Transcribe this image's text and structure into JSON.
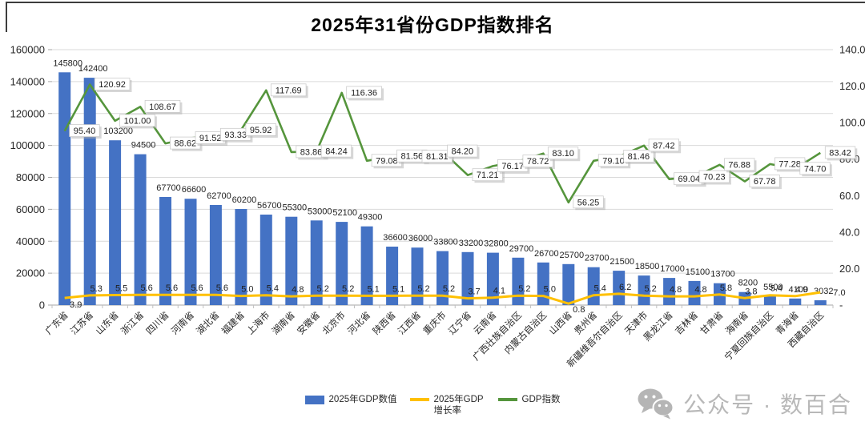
{
  "chart_data": {
    "type": "bar+line combo",
    "title": "2025年31省份GDP指数排名",
    "legend_position": "bottom",
    "grid": true,
    "categories": [
      "广东省",
      "江苏省",
      "山东省",
      "浙江省",
      "四川省",
      "河南省",
      "湖北省",
      "福建省",
      "上海市",
      "湖南省",
      "安徽省",
      "北京市",
      "河北省",
      "陕西省",
      "江西省",
      "重庆市",
      "辽宁省",
      "云南省",
      "广西壮族自治区",
      "内蒙古自治区",
      "山西省",
      "贵州省",
      "新疆维吾尔自治区",
      "天津市",
      "黑龙江省",
      "吉林省",
      "甘肃省",
      "海南省",
      "宁夏回族自治区",
      "青海省",
      "西藏自治区"
    ],
    "series": [
      {
        "name": "2025年GDP数值",
        "type": "bar",
        "axis": "left",
        "color": "#4472C4",
        "values": [
          145800,
          142400,
          103200,
          94500,
          67700,
          66600,
          62700,
          60200,
          56700,
          55300,
          53000,
          52100,
          49300,
          36600,
          36000,
          33800,
          33200,
          32800,
          29700,
          26700,
          25700,
          23700,
          21500,
          18500,
          17000,
          15100,
          13700,
          8200,
          5500,
          4100,
          3032
        ]
      },
      {
        "name": "2025年GDP增长率",
        "type": "line",
        "axis": "right",
        "color": "#FFC000",
        "labels": [
          "3.9",
          "5.3",
          "5.5",
          "5.6",
          "5.6",
          "5.6",
          "5.6",
          "5.0",
          "5.4",
          "4.8",
          "5.2",
          "5.2",
          "5.1",
          "5.1",
          "5.2",
          "5.2",
          "3.7",
          "4.1",
          "5.2",
          "5.0",
          "0.8",
          "5.4",
          "6.2",
          "5.2",
          "4.8",
          "4.8",
          "5.8",
          "3.8",
          "5.4",
          "4.9",
          "7.0"
        ]
      },
      {
        "name": "GDP指数",
        "type": "line",
        "axis": "right",
        "color": "#55953C",
        "labels": [
          "95.40",
          "120.92",
          "101.00",
          "108.67",
          "88.62",
          "91.52",
          "93.33",
          "95.92",
          "117.69",
          "83.86",
          "84.24",
          "116.36",
          "79.08",
          "81.56",
          "81.31",
          "84.20",
          "71.21",
          "76.17",
          "78.72",
          "83.10",
          "56.25",
          "79.10",
          "81.46",
          "87.42",
          "69.04",
          "70.23",
          "76.88",
          "67.78",
          "77.28",
          "74.70",
          "83.42"
        ]
      }
    ],
    "left_axis": {
      "max": 160000,
      "ticks": [
        "160000",
        "140000",
        "120000",
        "100000",
        "80000",
        "60000",
        "40000",
        "20000",
        "0"
      ]
    },
    "right_axis": {
      "max": 140,
      "ticks": [
        "140.0",
        "120.0",
        "100.0",
        "80.0",
        "60.0",
        "40.0",
        "20.0",
        "-"
      ]
    }
  },
  "watermark": {
    "icon": "wechat-icon",
    "text": "公众号 · 数百合"
  }
}
